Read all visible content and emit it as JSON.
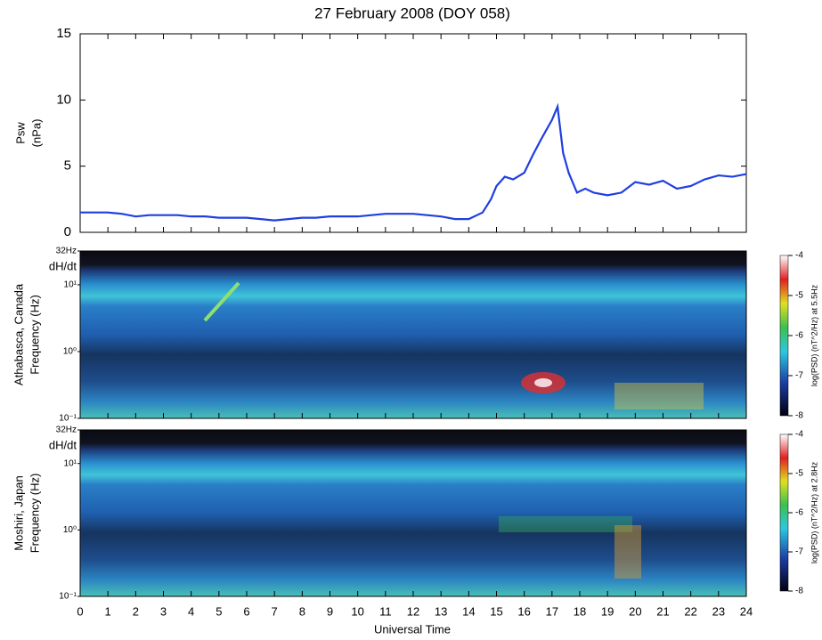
{
  "chart_data": [
    {
      "type": "line",
      "title": "27 February 2008 (DOY 058)",
      "ylabel": [
        "Psw",
        "(nPa)"
      ],
      "xlabel": "Universal Time",
      "xlim": [
        0,
        24
      ],
      "xticks": [
        0,
        1,
        2,
        3,
        4,
        5,
        6,
        7,
        8,
        9,
        10,
        11,
        12,
        13,
        14,
        15,
        16,
        17,
        18,
        19,
        20,
        21,
        22,
        23,
        24
      ],
      "ylim": [
        0,
        15
      ],
      "yticks": [
        0,
        5,
        10,
        15
      ],
      "series": [
        {
          "color": "#1f3fe0",
          "x": [
            0,
            0.5,
            1,
            1.5,
            2,
            2.5,
            3,
            3.5,
            4,
            4.5,
            5,
            5.5,
            6,
            6.5,
            7,
            7.5,
            8,
            8.5,
            9,
            9.5,
            10,
            10.5,
            11,
            11.5,
            12,
            12.5,
            13,
            13.5,
            14,
            14.5,
            14.8,
            15,
            15.3,
            15.6,
            16,
            16.3,
            16.6,
            17,
            17.2,
            17.4,
            17.6,
            17.9,
            18.2,
            18.5,
            19,
            19.5,
            20,
            20.5,
            21,
            21.5,
            22,
            22.5,
            23,
            23.5,
            24
          ],
          "values": [
            1.5,
            1.5,
            1.5,
            1.4,
            1.2,
            1.3,
            1.3,
            1.3,
            1.2,
            1.2,
            1.1,
            1.1,
            1.1,
            1.0,
            0.9,
            1.0,
            1.1,
            1.1,
            1.2,
            1.2,
            1.2,
            1.3,
            1.4,
            1.4,
            1.4,
            1.3,
            1.2,
            1.0,
            1.0,
            1.5,
            2.5,
            3.5,
            4.2,
            4.0,
            4.5,
            5.8,
            7.0,
            8.5,
            9.5,
            6.0,
            4.5,
            3.0,
            3.3,
            3.0,
            2.8,
            3.0,
            3.8,
            3.6,
            3.9,
            3.3,
            3.5,
            4.0,
            4.3,
            4.2,
            4.4
          ]
        }
      ]
    },
    {
      "type": "spectrogram",
      "ylabel": [
        "Athabasca, Canada",
        "Frequency (Hz)"
      ],
      "annotation": "dH/dt",
      "log_y": true,
      "ylim": [
        0.1,
        32
      ],
      "yticks": [
        {
          "value": 32,
          "label": "32Hz"
        },
        {
          "value": 10,
          "label": "10¹"
        },
        {
          "value": 1,
          "label": "10⁰"
        },
        {
          "value": 0.1,
          "label": "10⁻¹"
        }
      ],
      "clim": [
        -8,
        -4
      ],
      "cticks": [
        -8,
        -7,
        -6,
        -5,
        -4
      ],
      "clabel": "log(PSD) (nT^2/Hz) at 5.5Hz"
    },
    {
      "type": "spectrogram",
      "ylabel": [
        "Moshiri, Japan",
        "Frequency (Hz)"
      ],
      "annotation": "dH/dt",
      "log_y": true,
      "ylim": [
        0.1,
        32
      ],
      "yticks": [
        {
          "value": 32,
          "label": "32Hz"
        },
        {
          "value": 10,
          "label": "10¹"
        },
        {
          "value": 1,
          "label": "10⁰"
        },
        {
          "value": 0.1,
          "label": "10⁻¹"
        }
      ],
      "clim": [
        -8,
        -4
      ],
      "cticks": [
        -8,
        -7,
        -6,
        -5,
        -4
      ],
      "clabel": "log(PSD) (nT^2/Hz) at 2.8Hz"
    }
  ]
}
